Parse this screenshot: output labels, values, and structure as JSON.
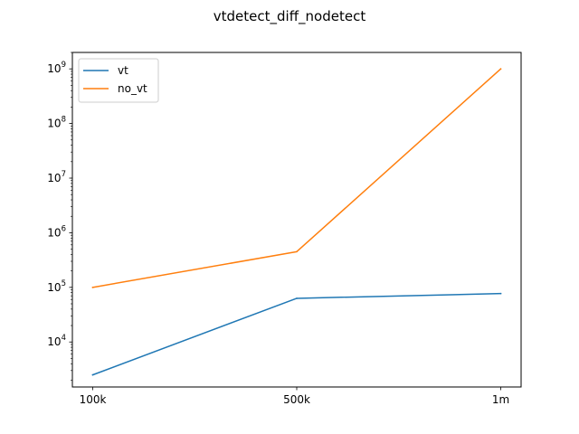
{
  "chart_data": {
    "type": "line",
    "title": "vtdetect_diff_nodetect",
    "xlabel": "",
    "ylabel": "",
    "categories": [
      "100k",
      "500k",
      "1m"
    ],
    "y_scale": "log",
    "ylim": [
      1500,
      2000000000
    ],
    "y_ticks": [
      {
        "value": 10000,
        "base": "10",
        "exp": "4"
      },
      {
        "value": 100000,
        "base": "10",
        "exp": "5"
      },
      {
        "value": 1000000,
        "base": "10",
        "exp": "6"
      },
      {
        "value": 10000000,
        "base": "10",
        "exp": "7"
      },
      {
        "value": 100000000,
        "base": "10",
        "exp": "8"
      },
      {
        "value": 1000000000,
        "base": "10",
        "exp": "9"
      }
    ],
    "grid": false,
    "legend_position": "top-left",
    "series": [
      {
        "name": "vt",
        "color": "#1f77b4",
        "values": [
          2500,
          63000,
          77000
        ]
      },
      {
        "name": "no_vt",
        "color": "#ff7f0e",
        "values": [
          100000,
          450000,
          1000000000
        ]
      }
    ]
  }
}
